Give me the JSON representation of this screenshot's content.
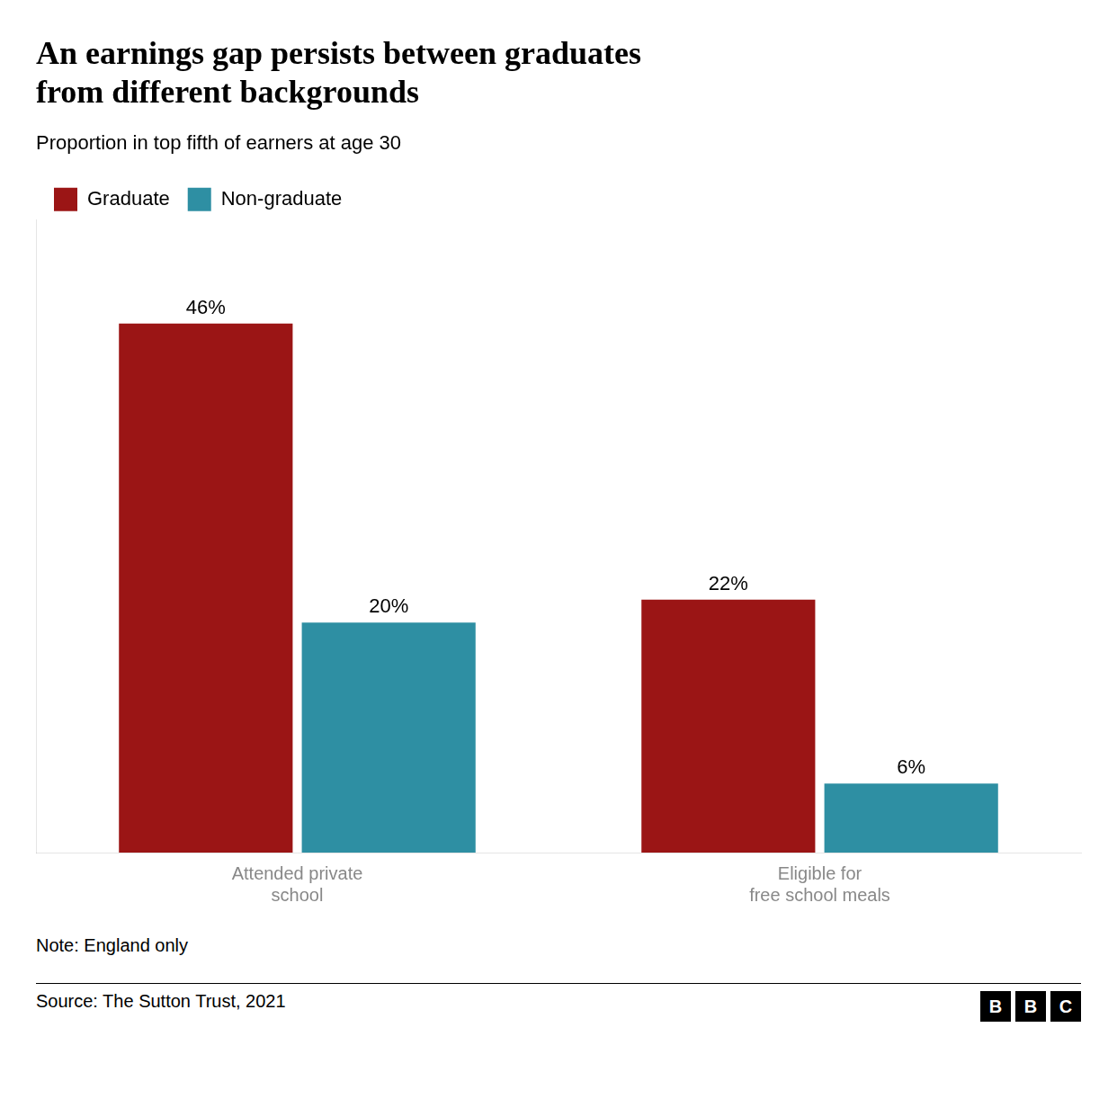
{
  "chart_data": {
    "type": "bar",
    "title": "An earnings gap persists between graduates\nfrom different backgrounds",
    "subtitle": "Proportion in top fifth of earners at age 30",
    "annotations": [
      "Note: England only",
      "Source: The Sutton Trust, 2021"
    ],
    "logo": "BBC",
    "categories": [
      "Attended private\nschool",
      "Eligible for\nfree school meals"
    ],
    "series": [
      {
        "name": "Graduate",
        "color": "#9b1515",
        "values": [
          46,
          22
        ],
        "value_labels": [
          "46%",
          "22%"
        ]
      },
      {
        "name": "Non-graduate",
        "color": "#2e8fa3",
        "values": [
          20,
          6
        ],
        "value_labels": [
          "20%",
          "6%"
        ]
      }
    ],
    "ylim": [
      0,
      55
    ],
    "grid": false,
    "legend": "upper left",
    "data_labels": true,
    "tick_labels": "x"
  }
}
